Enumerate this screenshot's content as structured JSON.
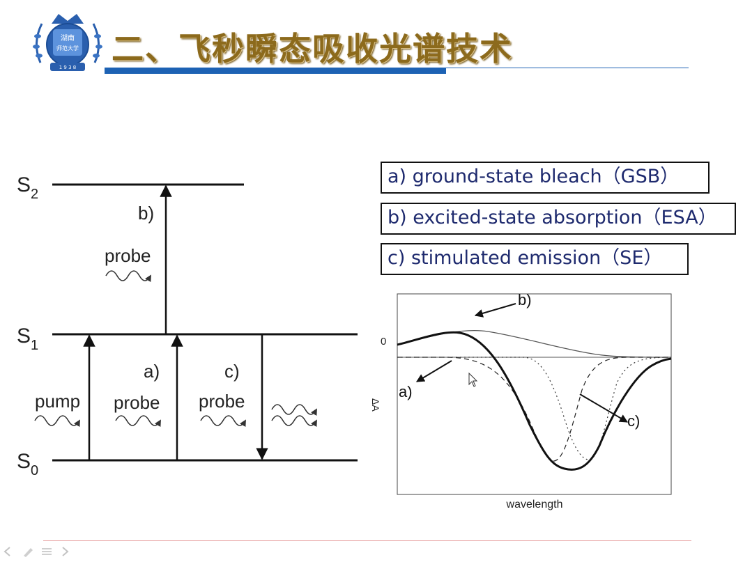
{
  "slide": {
    "title": "二、飞秒瞬态吸收光谱技术",
    "logo": {
      "icon": "university-seal-icon",
      "text_top": "湖南",
      "text_mid": "师范大学",
      "text_year": "1 9 3 8"
    },
    "colors": {
      "title": "#8c6a1c",
      "title_bar": "#1d62b4",
      "legend_text": "#1e2a6e",
      "footer_line": "#e7a0a0"
    }
  },
  "energy_diagram": {
    "levels": [
      {
        "label": "S",
        "sub": "2"
      },
      {
        "label": "S",
        "sub": "1"
      },
      {
        "label": "S",
        "sub": "0"
      }
    ],
    "transitions": {
      "pump": "pump",
      "a_label": "a)",
      "a_probe": "probe",
      "b_label": "b)",
      "b_probe": "probe",
      "c_label": "c)",
      "c_probe": "probe"
    }
  },
  "legend": {
    "a": "a) ground-state bleach（GSB）",
    "b": "b) excited-state absorption（ESA）",
    "c": "c) stimulated emission（SE）"
  },
  "spectrum": {
    "zero_label": "0",
    "ylabel": "ΔA",
    "xlabel": "wavelength",
    "annotation_a": "a)",
    "annotation_b": "b)",
    "annotation_c": "c)"
  },
  "controls": [
    "prev-icon",
    "pen-icon",
    "menu-icon",
    "next-icon"
  ]
}
